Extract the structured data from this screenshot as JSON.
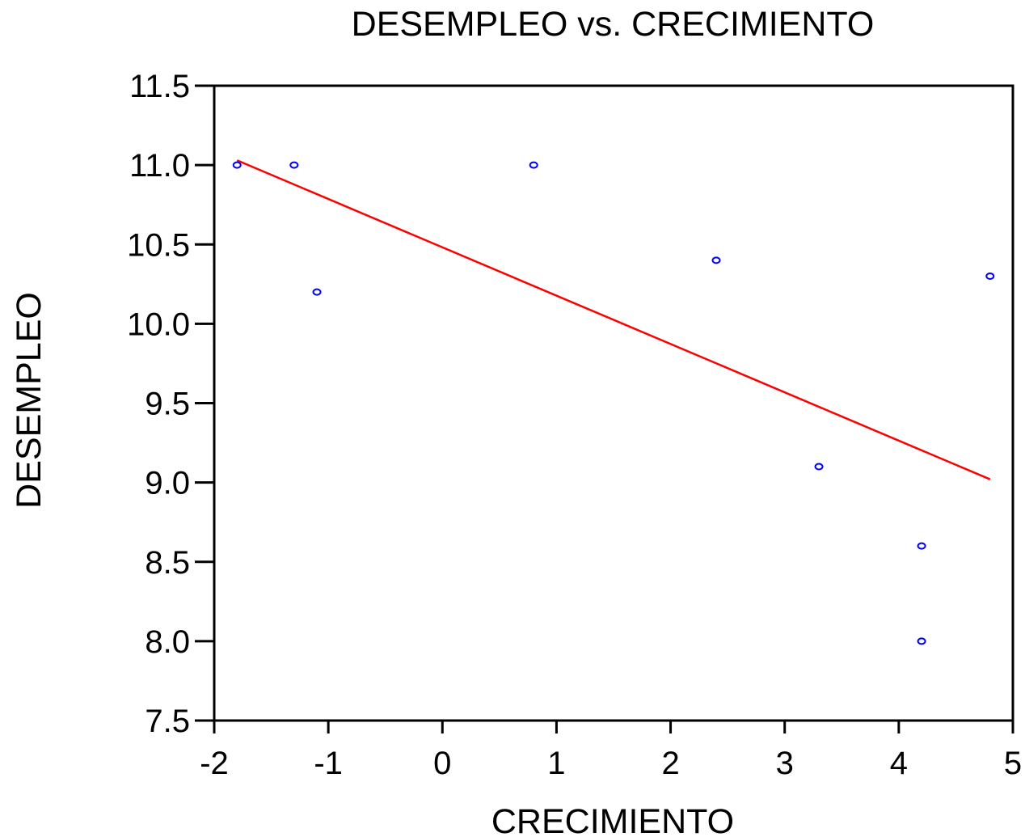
{
  "chart_data": {
    "type": "scatter",
    "title": "DESEMPLEO vs. CRECIMIENTO",
    "xlabel": "CRECIMIENTO",
    "ylabel": "DESEMPLEO",
    "xlim": [
      -2,
      5
    ],
    "ylim": [
      7.5,
      11.5
    ],
    "x_ticks": [
      "-2",
      "-1",
      "0",
      "1",
      "2",
      "3",
      "4",
      "5"
    ],
    "y_ticks": [
      "7.5",
      "8.0",
      "8.5",
      "9.0",
      "9.5",
      "10.0",
      "10.5",
      "11.0",
      "11.5"
    ],
    "points": [
      {
        "x": -1.8,
        "y": 11.0
      },
      {
        "x": -1.3,
        "y": 11.0
      },
      {
        "x": -1.1,
        "y": 10.2
      },
      {
        "x": 0.8,
        "y": 11.0
      },
      {
        "x": 2.4,
        "y": 10.4
      },
      {
        "x": 3.3,
        "y": 9.1
      },
      {
        "x": 4.2,
        "y": 8.6
      },
      {
        "x": 4.2,
        "y": 8.0
      },
      {
        "x": 4.8,
        "y": 10.3
      }
    ],
    "fit_line": {
      "x": [
        -1.8,
        4.8
      ],
      "y": [
        11.03,
        9.02
      ]
    },
    "colors": {
      "points": "#0000ff",
      "fit_line": "#ff0000",
      "frame": "#000000"
    },
    "grid": false,
    "legend": "none"
  }
}
